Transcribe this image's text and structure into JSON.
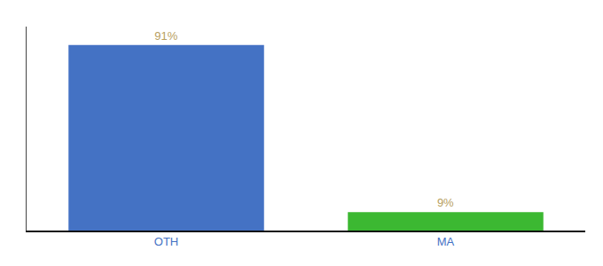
{
  "chart_data": {
    "type": "bar",
    "categories": [
      "OTH",
      "MA"
    ],
    "values": [
      91,
      9
    ],
    "value_labels": [
      "91%",
      "9%"
    ],
    "colors": [
      "#4472c4",
      "#3cb832"
    ],
    "ylim": [
      0,
      100
    ],
    "data_labels": true,
    "tick_labels": "x",
    "grid": false
  }
}
